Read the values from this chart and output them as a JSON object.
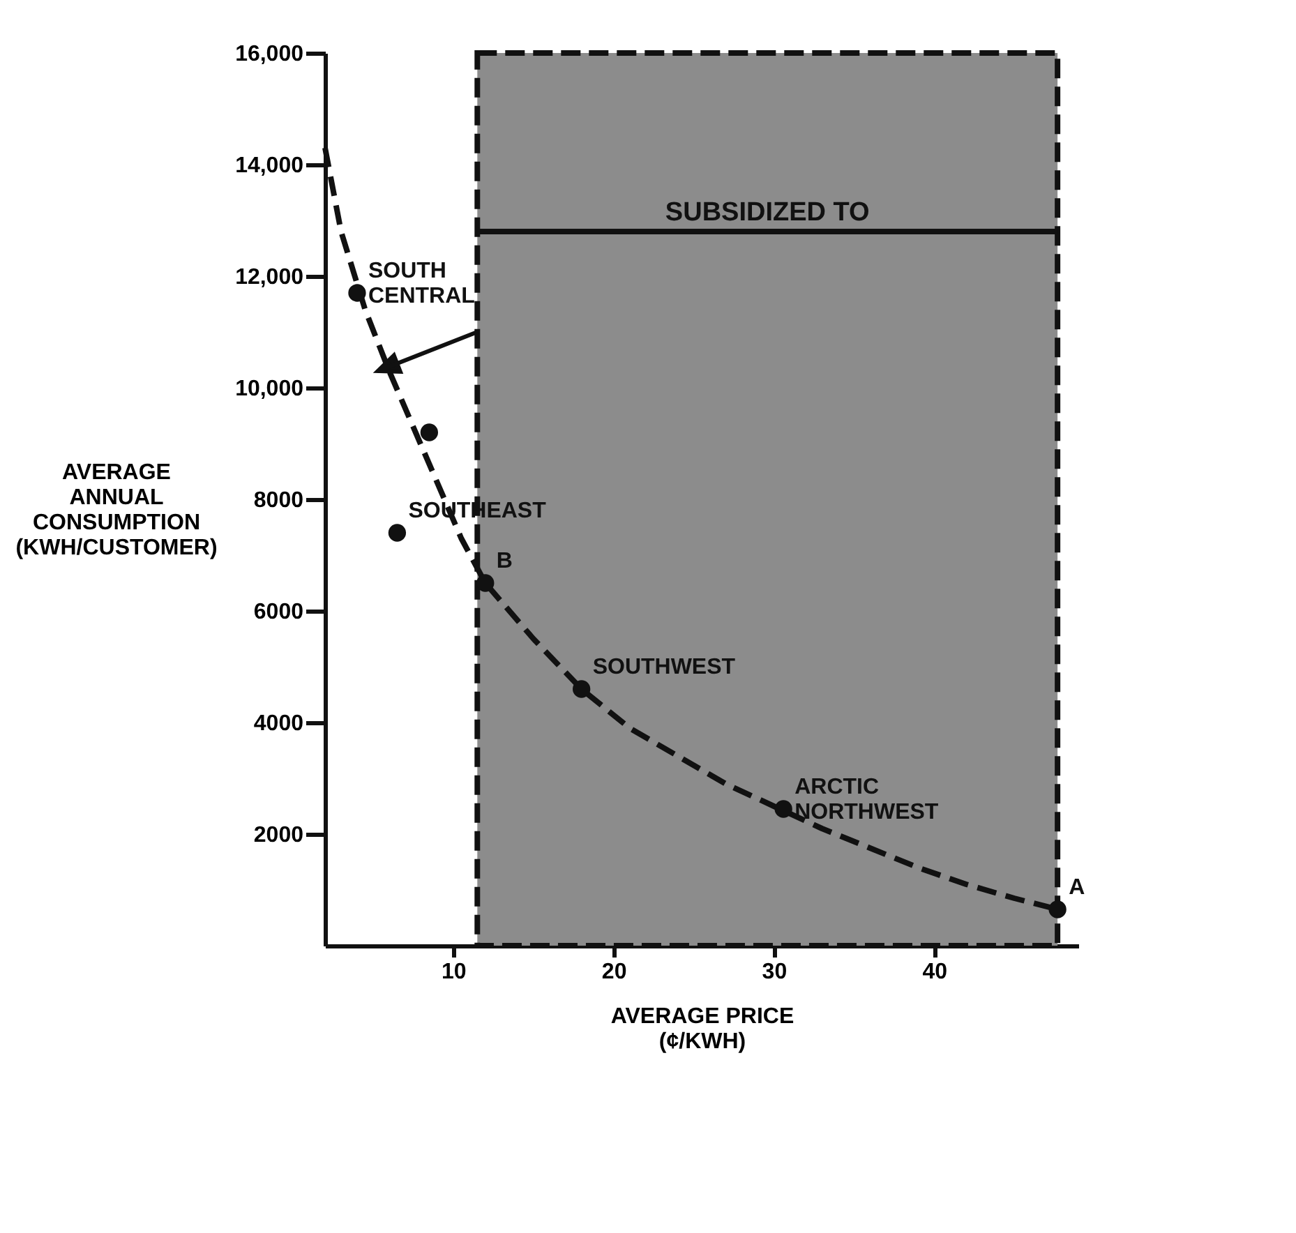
{
  "chart_data": {
    "type": "scatter",
    "xlabel": "AVERAGE PRICE\n(¢/KWH)",
    "ylabel": "AVERAGE\nANNUAL\nCONSUMPTION\n(KWH/CUSTOMER)",
    "xlim": [
      2,
      49
    ],
    "xticks": [
      10,
      20,
      30,
      40
    ],
    "ylim": [
      0,
      16000
    ],
    "yticks": [
      2000,
      4000,
      6000,
      8000,
      {
        "value": 10000,
        "label": "10,000"
      },
      {
        "value": 12000,
        "label": "12,000"
      },
      {
        "value": 14000,
        "label": "14,000"
      },
      {
        "value": 16000,
        "label": "16,000"
      }
    ],
    "grid": false,
    "series": [
      {
        "type": "line",
        "line_style": "dashed",
        "color": "#111111",
        "x": [
          2,
          3,
          4.5,
          6,
          7.5,
          9,
          10.5,
          12,
          15,
          18,
          21,
          24,
          27,
          30,
          33,
          36,
          39,
          42,
          45,
          47.7
        ],
        "values": [
          14300,
          12800,
          11400,
          10300,
          9300,
          8300,
          7300,
          6500,
          5500,
          4600,
          3900,
          3400,
          2900,
          2500,
          2100,
          1750,
          1400,
          1100,
          850,
          650
        ]
      },
      {
        "marker": "circle",
        "color": "#111111",
        "x": [
          4,
          8.5,
          6.5,
          12,
          18,
          30.6,
          47.7
        ],
        "values": [
          11700,
          9200,
          7400,
          6500,
          4600,
          2450,
          650
        ]
      }
    ],
    "bands": [
      {
        "axis": "x",
        "from": 11.5,
        "to": 47.7,
        "color": "#8c8c8c"
      }
    ],
    "ref_lines": [
      {
        "axis": "y",
        "value": 12800,
        "label": "SUBSIDIZED TO"
      }
    ],
    "annotations": [
      {
        "text": "SOUTH\nCENTRAL",
        "x": 4,
        "y": 11700
      },
      {
        "text": "SOUTHEAST",
        "x": 6.5,
        "y": 7400
      },
      {
        "text": "B",
        "x": 12,
        "y": 6500
      },
      {
        "text": "SOUTHWEST",
        "x": 18,
        "y": 4600
      },
      {
        "text": "ARCTIC\nNORTHWEST",
        "x": 30.6,
        "y": 2450
      },
      {
        "text": "A",
        "x": 47.7,
        "y": 650
      }
    ]
  }
}
